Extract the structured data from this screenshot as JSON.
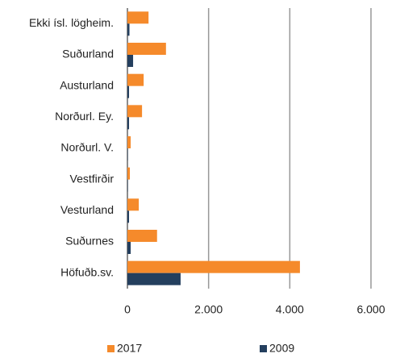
{
  "chart_data": {
    "type": "hbar",
    "categories": [
      "Ekki ísl. lögheim.",
      "Suðurland",
      "Austurland",
      "Norðurl. Ey.",
      "Norðurl. V.",
      "Vestfirðir",
      "Vesturland",
      "Suðurnes",
      "Höfuðb.sv."
    ],
    "series": [
      {
        "name": "2017",
        "color": "#f58a2b",
        "values": [
          520,
          950,
          400,
          360,
          80,
          60,
          280,
          730,
          4250
        ]
      },
      {
        "name": "2009",
        "color": "#243f5e",
        "values": [
          50,
          140,
          40,
          40,
          10,
          10,
          40,
          80,
          1310
        ]
      }
    ],
    "xlim": [
      0,
      6000
    ],
    "xticks": [
      0,
      {
        "value": 2000,
        "label": "2.000"
      },
      {
        "value": 4000,
        "label": "4.000"
      },
      {
        "value": 6000,
        "label": "6.000"
      }
    ],
    "grid": true,
    "legend": "bottom"
  }
}
